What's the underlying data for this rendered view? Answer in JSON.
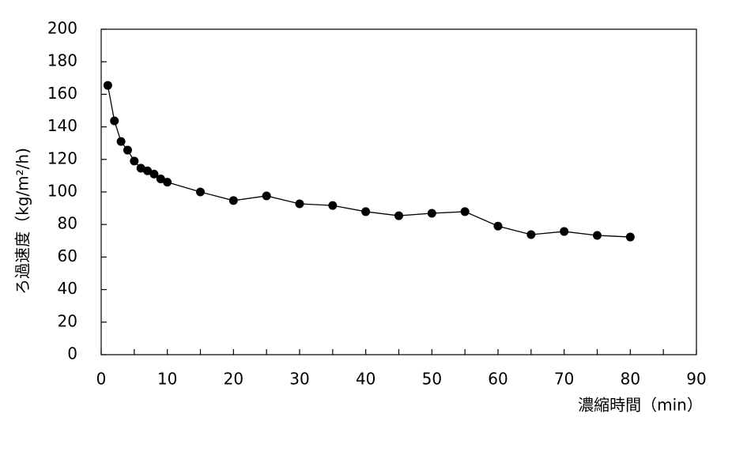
{
  "chart_data": {
    "type": "line",
    "x_label": "濃縮時間（min）",
    "y_label": "ろ過速度（kg/m²/h)",
    "x": [
      1,
      2,
      3,
      4,
      5,
      6,
      7,
      8,
      9,
      10,
      15,
      20,
      25,
      30,
      35,
      40,
      45,
      50,
      55,
      60,
      65,
      70,
      75,
      80
    ],
    "series": [
      {
        "color": "#000000",
        "values": [
          165.5,
          143.7,
          131,
          125.7,
          119,
          114.6,
          113,
          111,
          108,
          106,
          100,
          94.7,
          97.6,
          92.7,
          91.7,
          87.9,
          85.4,
          86.9,
          87.9,
          79,
          73.8,
          75.7,
          73.3,
          72.3
        ]
      }
    ],
    "xlim": [
      0,
      90
    ],
    "xticks": [
      0,
      10,
      20,
      30,
      40,
      50,
      60,
      70,
      80,
      90
    ],
    "xminorticks": [
      5,
      15,
      25,
      35,
      45,
      55,
      65,
      75,
      85
    ],
    "ylim": [
      0,
      200
    ],
    "yticks": [
      0,
      20,
      40,
      60,
      80,
      100,
      120,
      140,
      160,
      180,
      200
    ],
    "grid": false
  }
}
